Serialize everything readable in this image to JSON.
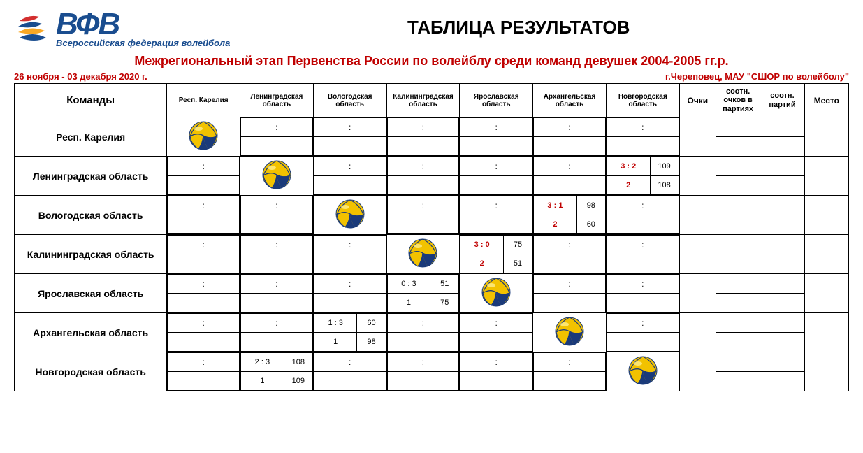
{
  "logo": {
    "text": "ВФВ",
    "sub": "Всероссийская федерация волейбола",
    "primary_color": "#1a4d8f",
    "accent_colors": [
      "#d32f2f",
      "#1a4d8f",
      "#f9a825"
    ]
  },
  "title": "ТАБЛИЦА РЕЗУЛЬТАТОВ",
  "subtitle": "Межрегиональный этап Первенства России по волейблу среди команд девушек 2004-2005 гг.р.",
  "date_range": "26 ноября - 03 декабря 2020 г.",
  "location": "г.Череповец, МАУ \"СШОР по волейболу\"",
  "headers": {
    "teams": "Команды",
    "points": "Очки",
    "ratio_points": "соотн. очков в партиях",
    "ratio_sets": "соотн. партий",
    "place": "Место"
  },
  "teams": [
    "Респ. Карелия",
    "Ленинградская область",
    "Вологодская область",
    "Калининградская область",
    "Ярославская область",
    "Архангельская область",
    "Новгородская область"
  ],
  "short_teams": [
    "Респ. Карелия",
    "Ленинградская область",
    "Вологодская область",
    "Калининградская область",
    "Ярославская область",
    "Архангельская область",
    "Новгородская область"
  ],
  "ball_colors": {
    "body": "#f2c200",
    "stripe": "#1a3a7a",
    "highlight": "#fff3a0"
  },
  "matches": {
    "1-6": {
      "score": "3 : 2",
      "pts_top": "109",
      "result": "2",
      "pts_bot": "108",
      "red": true
    },
    "2-5": {
      "score": "3 : 1",
      "pts_top": "98",
      "result": "2",
      "pts_bot": "60",
      "red": true
    },
    "3-4": {
      "score": "3 : 0",
      "pts_top": "75",
      "result": "2",
      "pts_bot": "51",
      "red": true
    },
    "4-3": {
      "score": "0 : 3",
      "pts_top": "51",
      "result": "1",
      "pts_bot": "75",
      "red": false
    },
    "5-2": {
      "score": "1 : 3",
      "pts_top": "60",
      "result": "1",
      "pts_bot": "98",
      "red": false
    },
    "6-1": {
      "score": "2 : 3",
      "pts_top": "108",
      "result": "1",
      "pts_bot": "109",
      "red": false
    }
  }
}
